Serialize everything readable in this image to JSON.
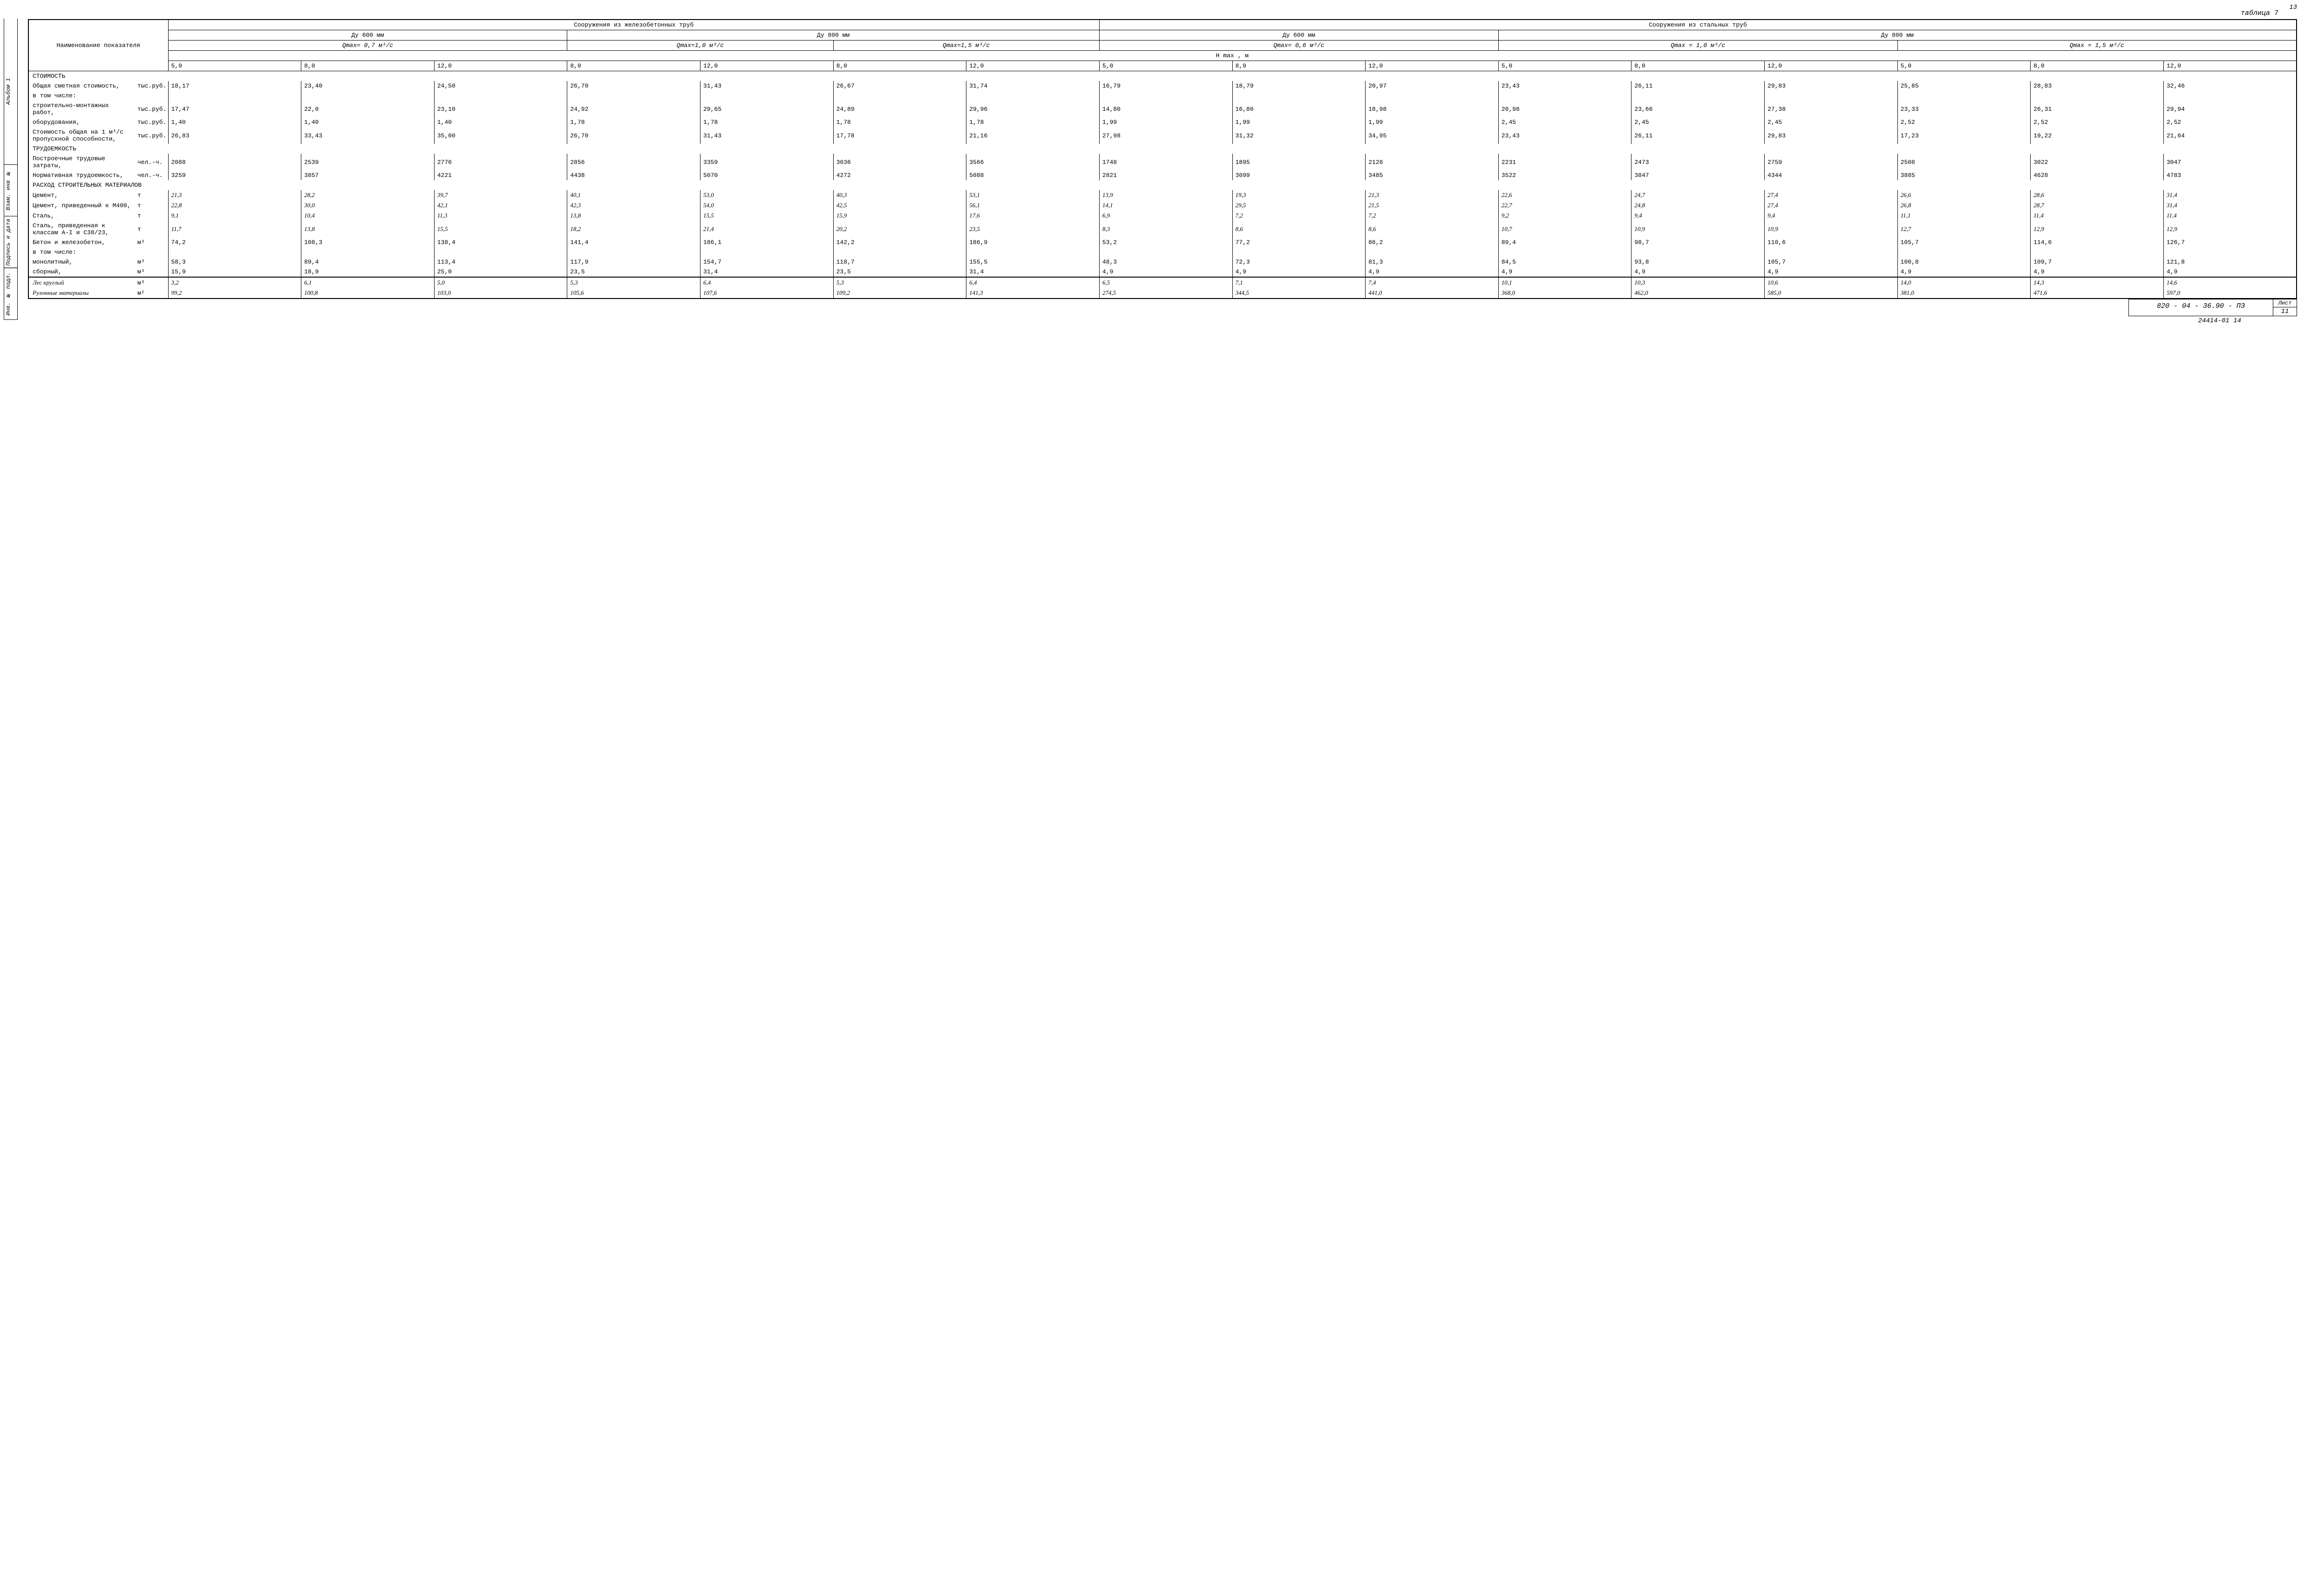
{
  "page_number_top": "13",
  "side_labels": {
    "album": "Альбом 1",
    "vzam": "Взам. инв №",
    "podpis": "Подпись и дата",
    "inv": "Инв. № подл."
  },
  "table_title": "таблица 7",
  "header": {
    "name_col": "Наименование показателя",
    "group1": "Сооружения из железобетонных труб",
    "group2": "Сооружения из стальных труб",
    "dy600": "Ду 600 мм",
    "dy800": "Ду 800 мм",
    "q07": "Qmax= 0,7 м³/с",
    "q10_a": "Qmax=1,0 м³/с",
    "q15_a": "Qmax=1,5 м³/с",
    "q06": "Qmax= 0,6 м³/с",
    "q10_b": "Qmax = 1,0 м³/с",
    "q15_b": "Qmax = 1,5 м³/с",
    "hmax": "H max , м",
    "h_values": [
      "5,0",
      "8,0",
      "12,0",
      "8,0",
      "12,0",
      "8,0",
      "12,0",
      "5,0",
      "8,0",
      "12,0",
      "5,0",
      "8,0",
      "12,0",
      "5,0",
      "8,0",
      "12,0"
    ]
  },
  "sections": {
    "cost": "СТОИМОСТЬ",
    "labor": "ТРУДОЕМКОСТЬ",
    "materials": "РАСХОД СТРОИТЕЛЬНЫХ МАТЕРИАЛОВ"
  },
  "rows": [
    {
      "label": "Общая сметная стоимость,",
      "unit": "тыс.руб.",
      "vals": [
        "18,17",
        "23,40",
        "24,50",
        "26,70",
        "31,43",
        "26,67",
        "31,74",
        "16,79",
        "18,79",
        "20,97",
        "23,43",
        "26,11",
        "29,83",
        "25,85",
        "28,83",
        "32,46"
      ]
    },
    {
      "label": "в том числе:",
      "unit": "",
      "vals": [
        "",
        "",
        "",
        "",
        "",
        "",
        "",
        "",
        "",
        "",
        "",
        "",
        "",
        "",
        "",
        ""
      ],
      "noborder": true
    },
    {
      "label": "строительно-монтажных работ,",
      "unit": "тыс.руб.",
      "vals": [
        "17,47",
        "22,0",
        "23,10",
        "24,92",
        "29,65",
        "24,89",
        "29,96",
        "14,80",
        "16,80",
        "18,98",
        "20,98",
        "23,66",
        "27,38",
        "23,33",
        "26,31",
        "29,94"
      ]
    },
    {
      "label": "оборудования,",
      "unit": "тыс.руб.",
      "vals": [
        "1,40",
        "1,40",
        "1,40",
        "1,78",
        "1,78",
        "1,78",
        "1,78",
        "1,99",
        "1,99",
        "1,99",
        "2,45",
        "2,45",
        "2,45",
        "2,52",
        "2,52",
        "2,52"
      ]
    },
    {
      "label": "Стоимость общая на 1 м³/с пропускной способности,",
      "unit": "тыс.руб.",
      "vals": [
        "26,83",
        "33,43",
        "35,00",
        "26,70",
        "31,43",
        "17,78",
        "21,16",
        "27,98",
        "31,32",
        "34,95",
        "23,43",
        "26,11",
        "29,83",
        "17,23",
        "19,22",
        "21,64"
      ]
    },
    {
      "label": "Построечные трудовые затраты,",
      "unit": "чел.-ч.",
      "vals": [
        "2088",
        "2539",
        "2776",
        "2856",
        "3359",
        "3036",
        "3566",
        "1748",
        "1895",
        "2128",
        "2231",
        "2473",
        "2759",
        "2508",
        "3022",
        "3047"
      ]
    },
    {
      "label": "Нормативная трудоемкость,",
      "unit": "чел.-ч.",
      "vals": [
        "3259",
        "3857",
        "4221",
        "4438",
        "5070",
        "4272",
        "5088",
        "2821",
        "3099",
        "3485",
        "3522",
        "3847",
        "4344",
        "3885",
        "4628",
        "4783"
      ]
    },
    {
      "label": "Цемент,",
      "unit": "т",
      "vals": [
        "21,3",
        "28,2",
        "39,7",
        "40,1",
        "53,0",
        "40,3",
        "53,1",
        "13,9",
        "19,3",
        "21,3",
        "22,6",
        "24,7",
        "27,4",
        "26,6",
        "28,6",
        "31,4"
      ],
      "hand": true
    },
    {
      "label": "Цемент, приведенный к М400,",
      "unit": "т",
      "vals": [
        "22,8",
        "30,0",
        "42,1",
        "42,3",
        "54,0",
        "42,5",
        "56,1",
        "14,1",
        "29,5",
        "21,5",
        "22,7",
        "24,8",
        "27,4",
        "26,8",
        "28,7",
        "31,4"
      ],
      "hand": true
    },
    {
      "label": "Сталь,",
      "unit": "т",
      "vals": [
        "9,1",
        "10,4",
        "11,3",
        "13,8",
        "15,5",
        "15,9",
        "17,6",
        "6,9",
        "7,2",
        "7,2",
        "9,2",
        "9,4",
        "9,4",
        "11,1",
        "11,4",
        "11,4"
      ],
      "hand": true
    },
    {
      "label": "Сталь, приведенная к классам А-I и С38/23,",
      "unit": "т",
      "vals": [
        "11,7",
        "13,8",
        "15,5",
        "18,2",
        "21,4",
        "20,2",
        "23,5",
        "8,3",
        "8,6",
        "8,6",
        "10,7",
        "10,9",
        "10,9",
        "12,7",
        "12,9",
        "12,9"
      ],
      "hand": true
    },
    {
      "label": "Бетон и железобетон,",
      "unit": "м³",
      "vals": [
        "74,2",
        "108,3",
        "138,4",
        "141,4",
        "186,1",
        "142,2",
        "186,9",
        "53,2",
        "77,2",
        "86,2",
        "89,4",
        "98,7",
        "110,6",
        "105,7",
        "114,6",
        "126,7"
      ]
    },
    {
      "label": "в том числе:",
      "unit": "",
      "vals": [
        "",
        "",
        "",
        "",
        "",
        "",
        "",
        "",
        "",
        "",
        "",
        "",
        "",
        "",
        "",
        ""
      ],
      "noborder": true
    },
    {
      "label": "монолитный,",
      "unit": "м³",
      "vals": [
        "58,3",
        "89,4",
        "113,4",
        "117,9",
        "154,7",
        "118,7",
        "155,5",
        "48,3",
        "72,3",
        "81,3",
        "84,5",
        "93,8",
        "105,7",
        "100,8",
        "109,7",
        "121,8"
      ]
    },
    {
      "label": "сборный,",
      "unit": "м³",
      "vals": [
        "15,9",
        "18,9",
        "25,0",
        "23,5",
        "31,4",
        "23,5",
        "31,4",
        "4,9",
        "4,9",
        "4,9",
        "4,9",
        "4,9",
        "4,9",
        "4,9",
        "4,9",
        "4,9"
      ]
    },
    {
      "label": "Лес круглый",
      "unit": "м³",
      "vals": [
        "3,2",
        "6,1",
        "5,0",
        "5,3",
        "6,4",
        "5,3",
        "6,4",
        "6,5",
        "7,1",
        "7,4",
        "10,1",
        "10,3",
        "10,6",
        "14,0",
        "14,3",
        "14,6"
      ],
      "hand": true,
      "handlabel": true,
      "thicktop": true
    },
    {
      "label": "Рулонные материалы",
      "unit": "м²",
      "vals": [
        "99,2",
        "100,8",
        "103,0",
        "105,6",
        "107,6",
        "109,2",
        "141,3",
        "274,5",
        "344,5",
        "441,0",
        "368,0",
        "462,0",
        "585,0",
        "381,0",
        "471,6",
        "597,0"
      ],
      "hand": true,
      "handlabel": true
    }
  ],
  "footer": {
    "code": "820 - 04 - 36.90 - ПЗ",
    "sheet_label": "Лист",
    "sheet_num": "11",
    "stamp": "24414-01  14"
  }
}
